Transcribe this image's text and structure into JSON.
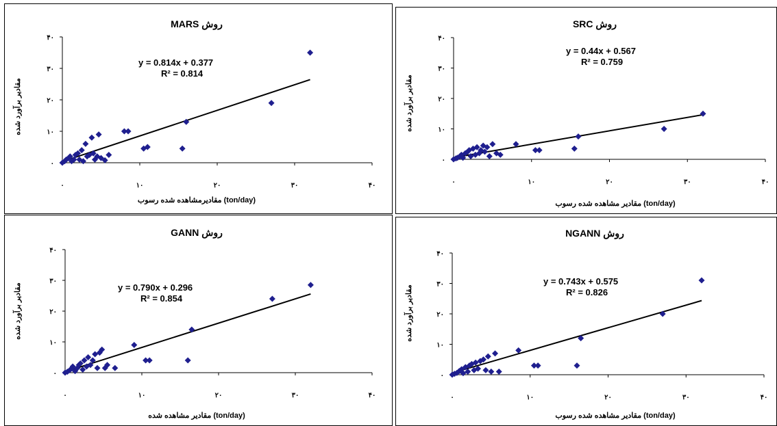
{
  "chart_data": [
    {
      "type": "scatter",
      "title": "MARS روش",
      "xlabel": "مقادیرمشاهده شده رسوب  (ton/day)",
      "ylabel": "مقادیر برآورد شده",
      "equation": "y = 0.814x + 0.377",
      "r2": "R² = 0.814",
      "trendline": {
        "slope": 0.814,
        "intercept": 0.377
      },
      "xlim": [
        0,
        40
      ],
      "ylim": [
        0,
        40
      ],
      "xticks": [
        "۰",
        "۱۰",
        "۲۰",
        "۳۰",
        "۴۰"
      ],
      "yticks": [
        "۰",
        "۱۰",
        "۲۰",
        "۳۰",
        "۴۰"
      ],
      "color": "#1f1f8f",
      "points": [
        [
          0,
          0
        ],
        [
          0.3,
          0.5
        ],
        [
          0.5,
          1
        ],
        [
          0.8,
          1.5
        ],
        [
          1,
          2
        ],
        [
          1.2,
          0.5
        ],
        [
          1.5,
          1
        ],
        [
          1.7,
          2.5
        ],
        [
          2,
          3
        ],
        [
          2.2,
          1
        ],
        [
          2.5,
          4
        ],
        [
          2.7,
          0.5
        ],
        [
          3,
          6
        ],
        [
          3.2,
          2
        ],
        [
          3.5,
          2.5
        ],
        [
          3.8,
          8
        ],
        [
          4,
          3
        ],
        [
          4.2,
          1
        ],
        [
          4.5,
          2
        ],
        [
          4.7,
          9
        ],
        [
          5,
          1.5
        ],
        [
          5.5,
          0.8
        ],
        [
          6,
          2.5
        ],
        [
          8,
          10
        ],
        [
          8.5,
          10
        ],
        [
          10.5,
          4.5
        ],
        [
          11,
          5
        ],
        [
          15.5,
          4.5
        ],
        [
          16,
          13
        ],
        [
          27,
          19
        ],
        [
          32,
          35
        ]
      ]
    },
    {
      "type": "scatter",
      "title": "SRC  روش",
      "xlabel": "مقادیر مشاهده شده رسوب   (ton/day)",
      "ylabel": "مقادیر برآورد شده",
      "equation": "y = 0.44x + 0.567",
      "r2": "R² = 0.759",
      "trendline": {
        "slope": 0.44,
        "intercept": 0.567
      },
      "xlim": [
        0,
        40
      ],
      "ylim": [
        0,
        40
      ],
      "xticks": [
        "۰",
        "۱۰",
        "۲۰",
        "۳۰",
        "۴۰"
      ],
      "yticks": [
        "۰",
        "۱۰",
        "۲۰",
        "۳۰",
        "۴۰"
      ],
      "color": "#1f1f8f",
      "points": [
        [
          0,
          0
        ],
        [
          0.3,
          0.3
        ],
        [
          0.5,
          0.5
        ],
        [
          0.8,
          1
        ],
        [
          1,
          1.5
        ],
        [
          1.2,
          0.5
        ],
        [
          1.5,
          2
        ],
        [
          1.8,
          2.5
        ],
        [
          2,
          3
        ],
        [
          2.2,
          1
        ],
        [
          2.5,
          3.5
        ],
        [
          2.8,
          1.5
        ],
        [
          3,
          4
        ],
        [
          3.3,
          2
        ],
        [
          3.5,
          3
        ],
        [
          3.8,
          4.5
        ],
        [
          4,
          2.5
        ],
        [
          4.3,
          4
        ],
        [
          4.6,
          1
        ],
        [
          5,
          5
        ],
        [
          5.5,
          2
        ],
        [
          6,
          1.5
        ],
        [
          8,
          5
        ],
        [
          10.5,
          3
        ],
        [
          11,
          3
        ],
        [
          15.5,
          3.5
        ],
        [
          16,
          7.5
        ],
        [
          27,
          10
        ],
        [
          32,
          15
        ]
      ]
    },
    {
      "type": "scatter",
      "title": "GANN روش",
      "xlabel": "مقادیر مشاهده شده   (ton/day)",
      "ylabel": "مقادیر برآورد شده",
      "equation": "y = 0.790x + 0.296",
      "r2": "R² = 0.854",
      "trendline": {
        "slope": 0.79,
        "intercept": 0.296
      },
      "xlim": [
        0,
        40
      ],
      "ylim": [
        0,
        40
      ],
      "xticks": [
        "۰",
        "۱۰",
        "۲۰",
        "۳۰",
        "۴۰"
      ],
      "yticks": [
        "۰",
        "۱۰",
        "۲۰",
        "۳۰",
        "۴۰"
      ],
      "color": "#1f1f8f",
      "points": [
        [
          0,
          0
        ],
        [
          0.3,
          0.3
        ],
        [
          0.6,
          0.8
        ],
        [
          0.9,
          1.5
        ],
        [
          1,
          2
        ],
        [
          1.3,
          0.5
        ],
        [
          1.6,
          1.5
        ],
        [
          1.8,
          2.5
        ],
        [
          2,
          3
        ],
        [
          2.3,
          1
        ],
        [
          2.5,
          4
        ],
        [
          2.8,
          2
        ],
        [
          3,
          5
        ],
        [
          3.3,
          2.5
        ],
        [
          3.6,
          4
        ],
        [
          3.9,
          6
        ],
        [
          4.2,
          1.5
        ],
        [
          4.5,
          6.5
        ],
        [
          4.8,
          7.5
        ],
        [
          5.2,
          1.5
        ],
        [
          5.5,
          2.5
        ],
        [
          6.5,
          1.5
        ],
        [
          9,
          9
        ],
        [
          10.5,
          4
        ],
        [
          11,
          4
        ],
        [
          16,
          4
        ],
        [
          16.5,
          14
        ],
        [
          27,
          24
        ],
        [
          32,
          28.5
        ]
      ]
    },
    {
      "type": "scatter",
      "title": "NGANN روش",
      "xlabel": "مقادیر مشاهده شده رسوب  (ton/day)",
      "ylabel": "مقادیر برآورد شده",
      "equation": "y = 0.743x + 0.575",
      "r2": "R² = 0.826",
      "trendline": {
        "slope": 0.743,
        "intercept": 0.575
      },
      "xlim": [
        0,
        40
      ],
      "ylim": [
        0,
        40
      ],
      "xticks": [
        "۰",
        "۱۰",
        "۲۰",
        "۳۰",
        "۴۰"
      ],
      "yticks": [
        "۰",
        "۱۰",
        "۲۰",
        "۳۰",
        "۴۰"
      ],
      "color": "#1f1f8f",
      "points": [
        [
          0,
          0
        ],
        [
          0.3,
          0.3
        ],
        [
          0.6,
          0.6
        ],
        [
          0.9,
          1.2
        ],
        [
          1.2,
          1.8
        ],
        [
          1.4,
          0.5
        ],
        [
          1.7,
          2.5
        ],
        [
          2,
          1
        ],
        [
          2.2,
          3
        ],
        [
          2.5,
          3.5
        ],
        [
          2.8,
          1.5
        ],
        [
          3,
          4
        ],
        [
          3.3,
          2
        ],
        [
          3.6,
          4.5
        ],
        [
          4,
          5
        ],
        [
          4.3,
          1.5
        ],
        [
          4.6,
          6
        ],
        [
          5,
          1
        ],
        [
          5.5,
          7
        ],
        [
          6,
          1
        ],
        [
          8.5,
          8
        ],
        [
          10.5,
          3
        ],
        [
          11,
          3
        ],
        [
          16,
          3
        ],
        [
          16.5,
          12
        ],
        [
          27,
          20
        ],
        [
          32,
          31
        ]
      ]
    }
  ]
}
